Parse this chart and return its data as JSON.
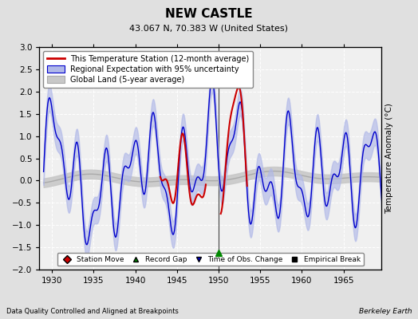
{
  "title": "NEW CASTLE",
  "subtitle": "43.067 N, 70.383 W (United States)",
  "ylabel": "Temperature Anomaly (°C)",
  "xlabel_left": "Data Quality Controlled and Aligned at Breakpoints",
  "xlabel_right": "Berkeley Earth",
  "ylim": [
    -2.0,
    3.0
  ],
  "xlim": [
    1928.5,
    1969.5
  ],
  "xticks": [
    1930,
    1935,
    1940,
    1945,
    1950,
    1955,
    1960,
    1965
  ],
  "yticks": [
    -2,
    -1.5,
    -1,
    -0.5,
    0,
    0.5,
    1,
    1.5,
    2,
    2.5,
    3
  ],
  "bg_color": "#e0e0e0",
  "plot_bg_color": "#f0f0f0",
  "grid_color": "#ffffff",
  "red_color": "#cc0000",
  "blue_color": "#0000cc",
  "blue_fill_color": "#b0b8e8",
  "gray_color": "#aaaaaa",
  "gray_fill_color": "#c8c8c8",
  "marker_green": "#008800",
  "marker_blue": "#0000cc",
  "marker_red": "#cc0000",
  "obs_change_year": 1950.0,
  "legend_labels": [
    "This Temperature Station (12-month average)",
    "Regional Expectation with 95% uncertainty",
    "Global Land (5-year average)"
  ],
  "bottom_legend_labels": [
    "Station Move",
    "Record Gap",
    "Time of Obs. Change",
    "Empirical Break"
  ]
}
